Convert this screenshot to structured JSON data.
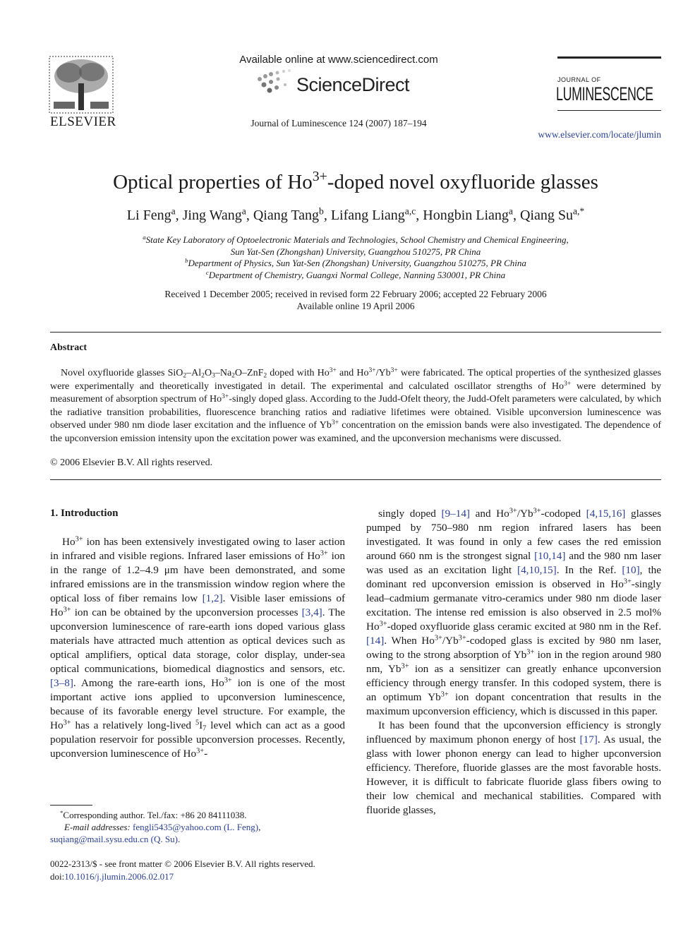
{
  "header": {
    "available_online": "Available online at www.sciencedirect.com",
    "sciencedirect": "ScienceDirect",
    "citation": "Journal of Luminescence 124 (2007) 187–194",
    "publisher": "ELSEVIER",
    "journal_small": "JOURNAL OF",
    "journal_big": "LUMINESCENCE",
    "url": "www.elsevier.com/locate/jlumin"
  },
  "title": [
    "Optical properties of Ho",
    {
      "sup": "3+"
    },
    "-doped novel oxyfluoride glasses"
  ],
  "authors": [
    "Li Feng",
    {
      "sup": "a"
    },
    ", Jing Wang",
    {
      "sup": "a"
    },
    ", Qiang Tang",
    {
      "sup": "b"
    },
    ", Lifang Liang",
    {
      "sup": "a,c"
    },
    ", Hongbin Liang",
    {
      "sup": "a"
    },
    ", Qiang Su",
    {
      "sup": "a,*"
    }
  ],
  "affiliations": [
    [
      {
        "sup": "a"
      },
      "State Key Laboratory of Optoelectronic Materials and Technologies, School Chemistry and Chemical Engineering,"
    ],
    [
      "Sun Yat-Sen (Zhongshan) University, Guangzhou 510275, PR China"
    ],
    [
      {
        "sup": "b"
      },
      "Department of Physics, Sun Yat-Sen (Zhongshan) University, Guangzhou 510275, PR China"
    ],
    [
      {
        "sup": "c"
      },
      "Department of Chemistry, Guangxi Normal College, Nanning 530001, PR China"
    ]
  ],
  "dates": [
    "Received 1 December 2005; received in revised form 22 February 2006; accepted 22 February 2006",
    "Available online 19 April 2006"
  ],
  "abstract": {
    "heading": "Abstract",
    "body": [
      "Novel oxyfluoride glasses SiO",
      {
        "sub": "2"
      },
      "–Al",
      {
        "sub": "2"
      },
      "O",
      {
        "sub": "3"
      },
      "–Na",
      {
        "sub": "2"
      },
      "O–ZnF",
      {
        "sub": "2"
      },
      " doped with Ho",
      {
        "sup": "3+"
      },
      " and Ho",
      {
        "sup": "3+"
      },
      "/Yb",
      {
        "sup": "3+"
      },
      " were fabricated. The optical properties of the synthesized glasses were experimentally and theoretically investigated in detail. The experimental and calculated oscillator strengths of Ho",
      {
        "sup": "3+"
      },
      " were determined by measurement of absorption spectrum of Ho",
      {
        "sup": "3+"
      },
      "-singly doped glass. According to the Judd-Ofelt theory, the Judd-Ofelt parameters were calculated, by which the radiative transition probabilities, fluorescence branching ratios and radiative lifetimes were obtained. Visible upconversion luminescence was observed under 980 nm diode laser excitation and the influence of Yb",
      {
        "sup": "3+"
      },
      " concentration on the emission bands were also investigated. The dependence of the upconversion emission intensity upon the excitation power was examined, and the upconversion mechanisms were discussed."
    ],
    "copyright": "© 2006 Elsevier B.V. All rights reserved."
  },
  "section": {
    "heading": "1.  Introduction",
    "left": [
      "Ho",
      {
        "sup": "3+"
      },
      " ion has been extensively investigated owing to laser action in infrared and visible regions. Infrared laser emissions of Ho",
      {
        "sup": "3+"
      },
      " ion in the range of 1.2–4.9 μm have been demonstrated, and some infrared emissions are in the transmission window region where the optical loss of fiber remains low ",
      {
        "link": "[1,2]"
      },
      ". Visible laser emissions of Ho",
      {
        "sup": "3+"
      },
      " ion can be obtained by the upconversion processes ",
      {
        "link": "[3,4]"
      },
      ". The upconversion luminescence of rare-earth ions doped various glass materials have attracted much attention as optical devices such as optical amplifiers, optical data storage, color display, under-sea optical communications, biomedical diagnostics and sensors, etc. ",
      {
        "link": "[3–8]"
      },
      ". Among the rare-earth ions, Ho",
      {
        "sup": "3+"
      },
      " ion is one of the most important active ions applied to upconversion luminescence, because of its favorable energy level structure. For example, the Ho",
      {
        "sup": "3+"
      },
      " has a relatively long-lived ",
      {
        "sup": "5"
      },
      "I",
      {
        "sub": "7"
      },
      " level which can act as a good population reservoir for possible upconversion processes. Recently, upconversion luminescence of Ho",
      {
        "sup": "3+"
      },
      "-"
    ],
    "right": [
      [
        "singly doped ",
        {
          "link": "[9–14]"
        },
        " and Ho",
        {
          "sup": "3+"
        },
        "/Yb",
        {
          "sup": "3+"
        },
        "-codoped ",
        {
          "link": "[4,15,16]"
        },
        " glasses pumped by 750–980 nm region infrared lasers has been investigated. It was found in only a few cases the red emission around 660 nm is the strongest signal ",
        {
          "link": "[10,14]"
        },
        " and the 980 nm laser was used as an excitation light ",
        {
          "link": "[4,10,15]"
        },
        ". In the Ref. ",
        {
          "link": "[10]"
        },
        ", the dominant red upconversion emission is observed in Ho",
        {
          "sup": "3+"
        },
        "-singly lead–cadmium germanate vitro-ceramics under 980 nm diode laser excitation. The intense red emission is also observed in 2.5 mol% Ho",
        {
          "sup": "3+"
        },
        "-doped oxyfluoride glass ceramic excited at 980 nm in the Ref. ",
        {
          "link": "[14]"
        },
        ". When Ho",
        {
          "sup": "3+"
        },
        "/Yb",
        {
          "sup": "3+"
        },
        "-codoped glass is excited by 980 nm laser, owing to the strong absorption of Yb",
        {
          "sup": "3+"
        },
        " ion in the region around 980 nm, Yb",
        {
          "sup": "3+"
        },
        " ion as a sensitizer can greatly enhance upconversion efficiency through energy transfer. In this codoped system, there is an optimum Yb",
        {
          "sup": "3+"
        },
        " ion dopant concentration that results in the maximum upconversion efficiency, which is discussed in this paper."
      ],
      [
        "It has been found that the upconversion efficiency is strongly influenced by maximum phonon energy of host ",
        {
          "link": "[17]"
        },
        ". As usual, the glass with lower phonon energy can lead to higher upconversion efficiency. Therefore, fluoride glasses are the most favorable hosts. However, it is difficult to fabricate fluoride glass fibers owing to their low chemical and mechanical stabilities. Compared with fluoride glasses,"
      ]
    ]
  },
  "footnote": [
    [
      {
        "sup": "*"
      },
      "Corresponding author. Tel./fax: +86 20 84111038."
    ],
    [
      {
        "i": "E-mail addresses: "
      },
      {
        "link": "fengli5435@yahoo.com (L. Feng)"
      },
      ","
    ],
    [
      {
        "link": "suqiang@mail.sysu.edu.cn (Q. Su)"
      },
      "."
    ]
  ],
  "front_matter": "0022-2313/$ - see front matter © 2006 Elsevier B.V. All rights reserved.",
  "doi": [
    "doi:",
    {
      "link": "10.1016/j.jlumin.2006.02.017"
    }
  ]
}
